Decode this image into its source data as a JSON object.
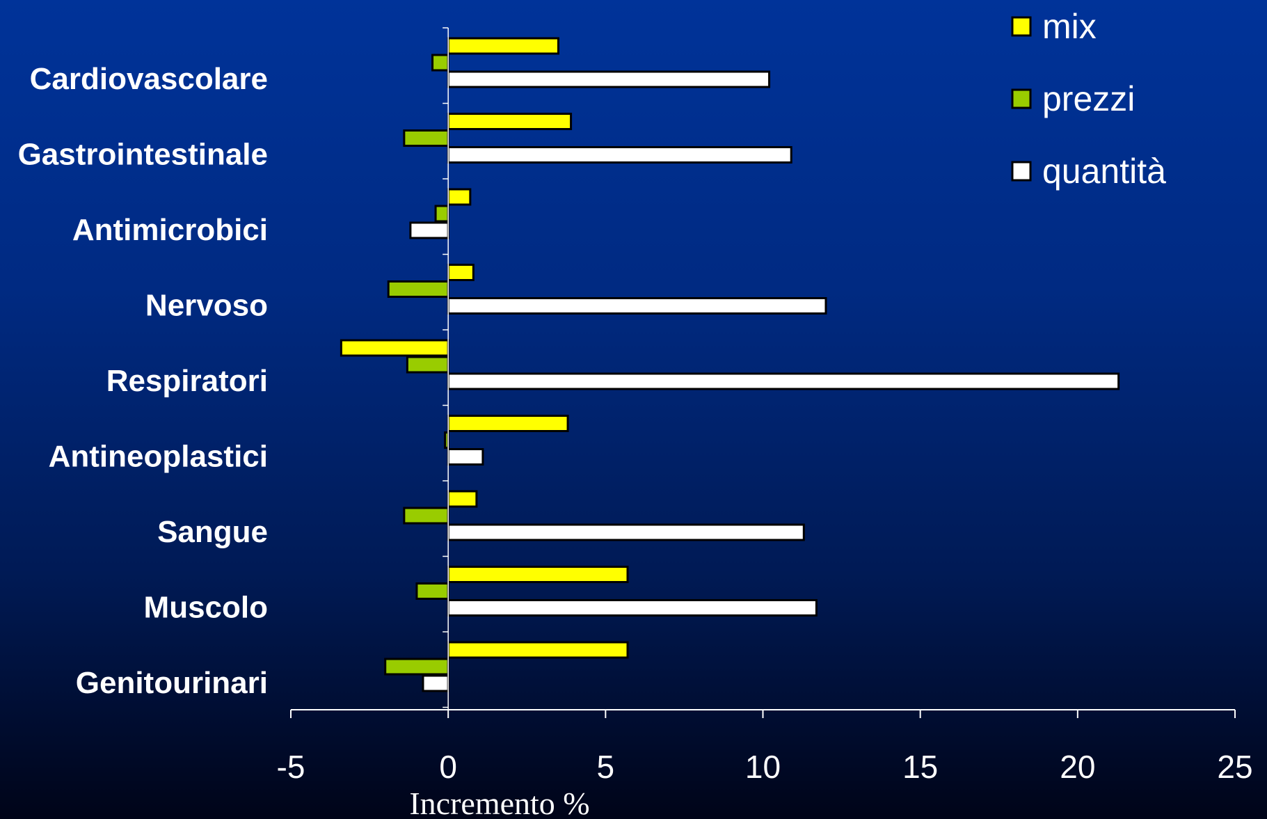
{
  "chart_data": {
    "type": "bar",
    "orientation": "horizontal",
    "categories": [
      "Cardiovascolare",
      "Gastrointestinale",
      "Antimicrobici",
      "Nervoso",
      "Respiratori",
      "Antineoplastici",
      "Sangue",
      "Muscolo",
      "Genitourinari"
    ],
    "series": [
      {
        "name": "mix",
        "color": "#ffff00",
        "values": [
          3.5,
          3.9,
          0.7,
          0.8,
          -3.4,
          3.8,
          0.9,
          5.7,
          5.7
        ]
      },
      {
        "name": "prezzi",
        "color": "#99cc00",
        "values": [
          -0.5,
          -1.4,
          -0.4,
          -1.9,
          -1.3,
          -0.1,
          -1.4,
          -1.0,
          -2.0
        ]
      },
      {
        "name": "quantità",
        "color": "#ffffff",
        "values": [
          10.2,
          10.9,
          -1.2,
          12.0,
          21.3,
          1.1,
          11.3,
          11.7,
          -0.8
        ]
      }
    ],
    "xlabel": "Incremento %",
    "ylabel": "",
    "title": "",
    "xlim": [
      -5,
      25
    ],
    "xticks": [
      "-5",
      "0",
      "5",
      "10",
      "15",
      "20",
      "25"
    ],
    "grid": false,
    "legend_position": "top-right"
  }
}
